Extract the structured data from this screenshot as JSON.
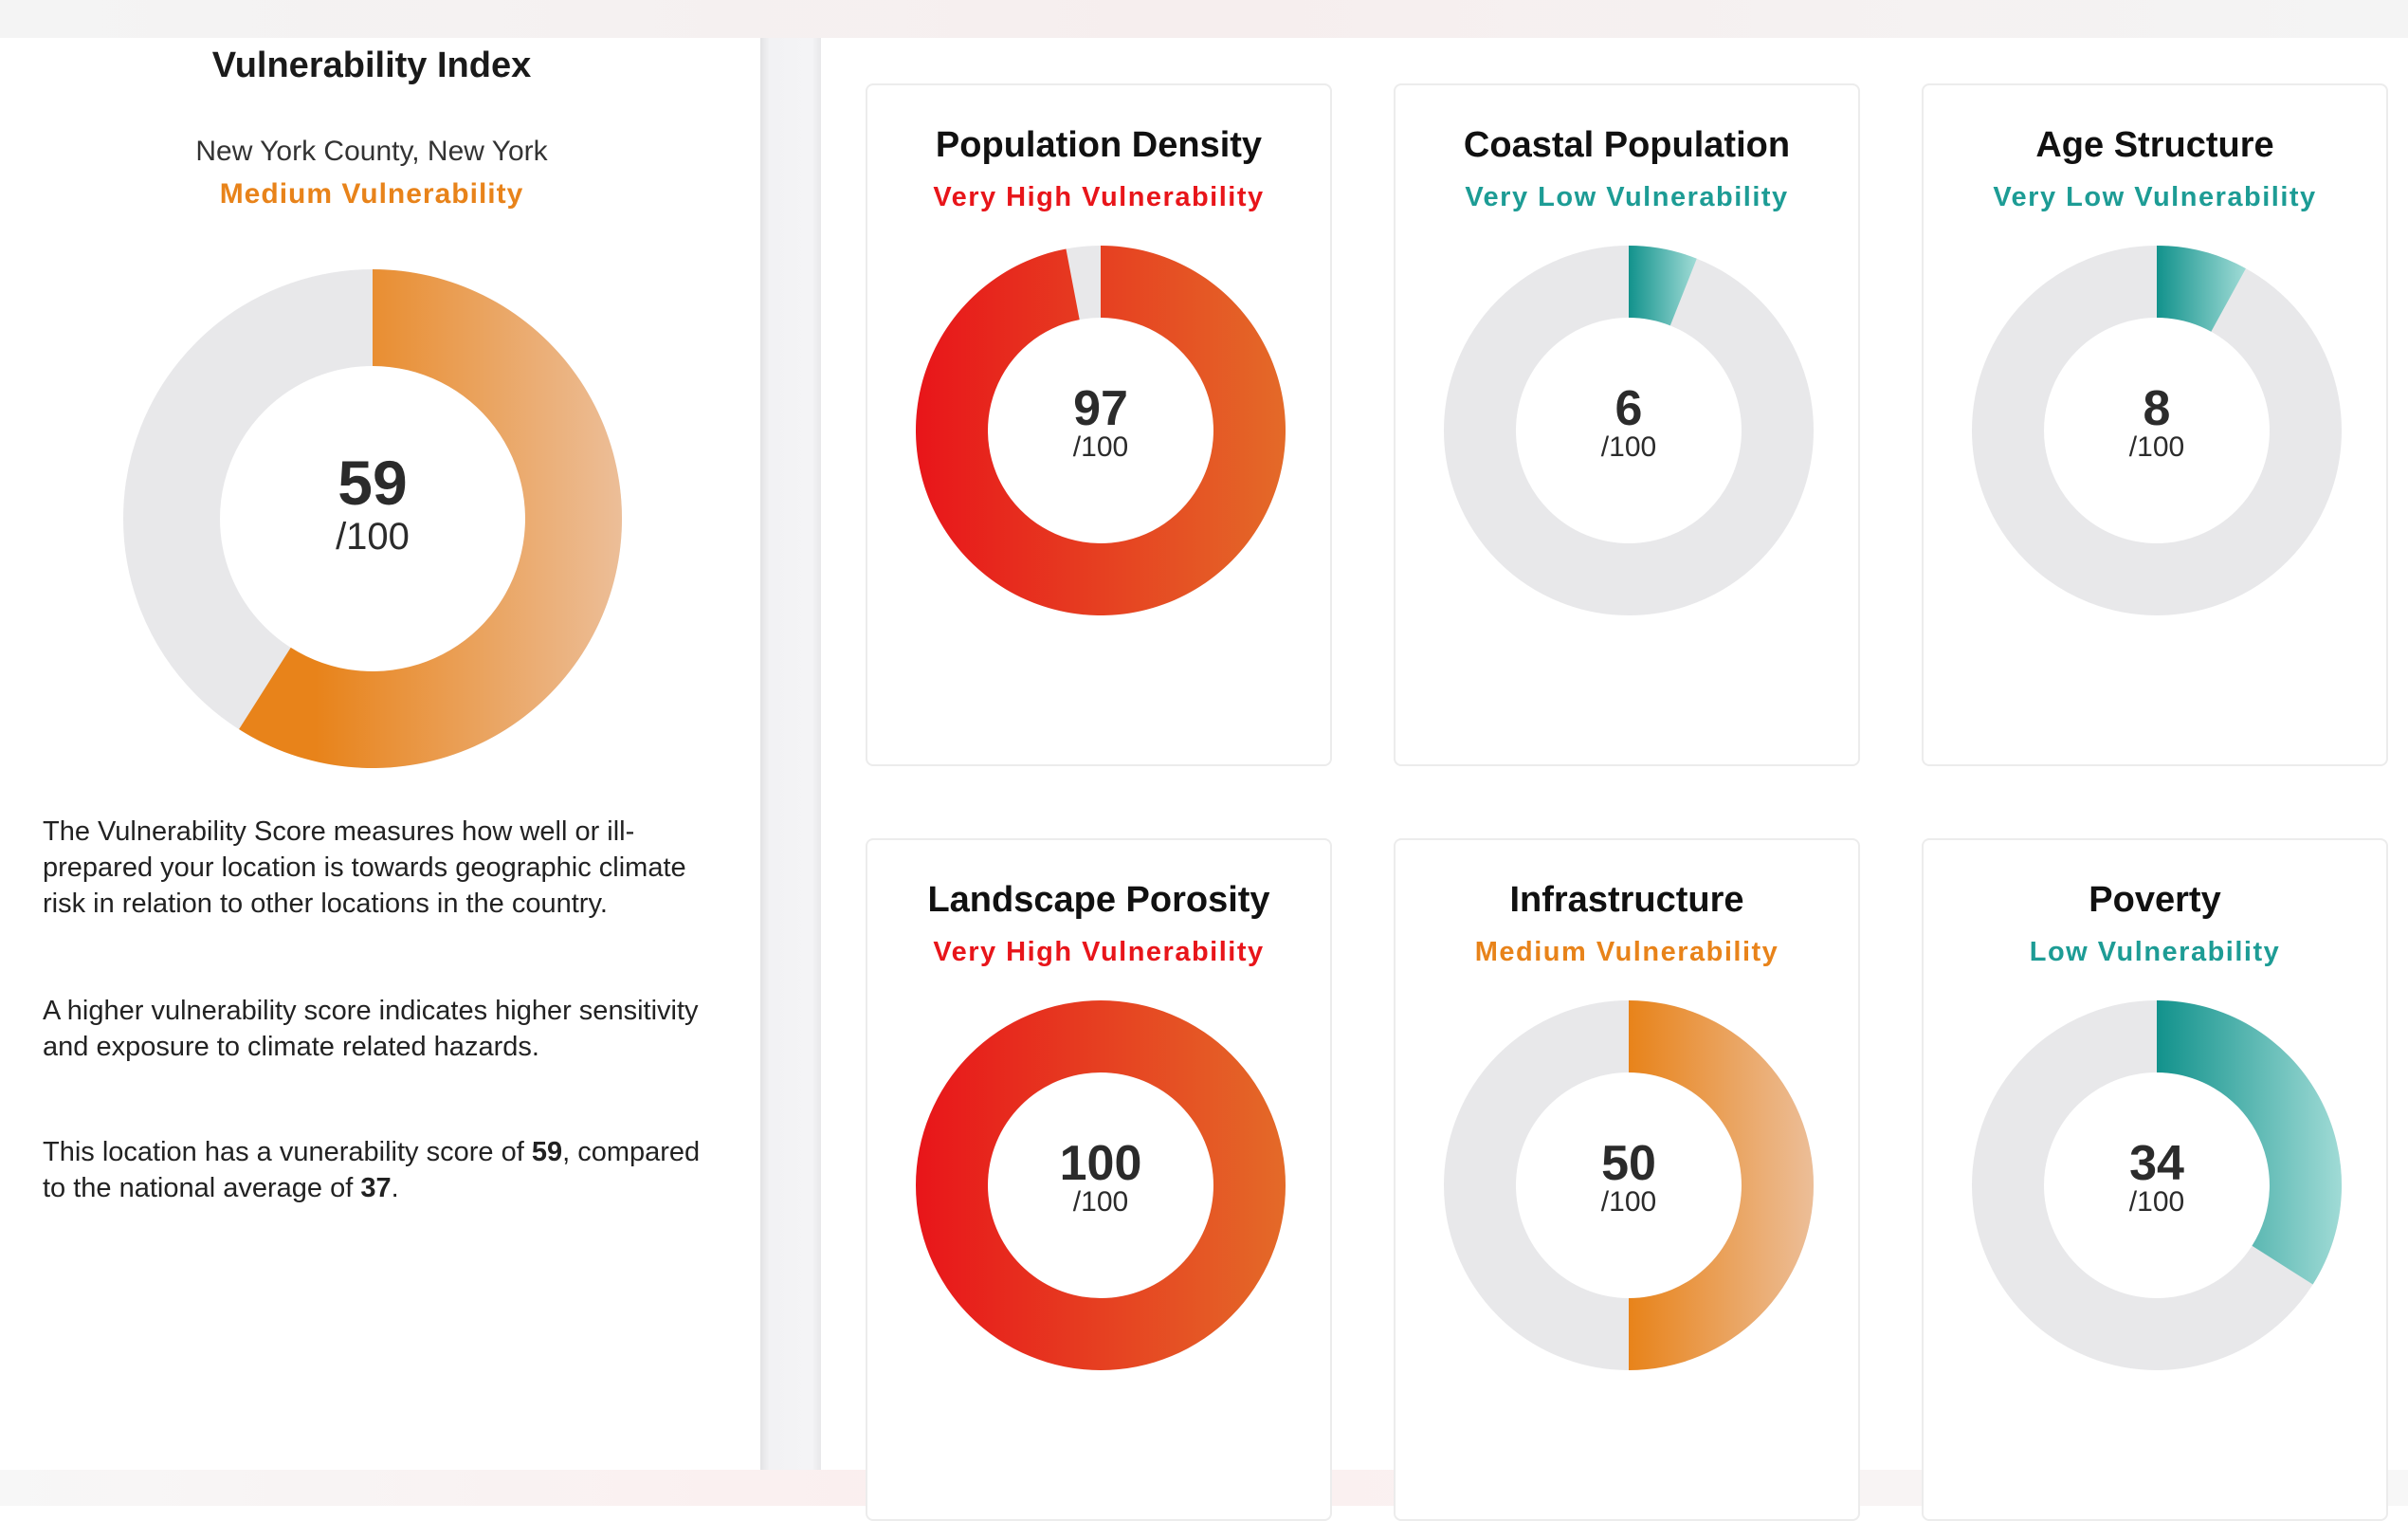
{
  "summary": {
    "title": "Vulnerability Index",
    "location": "New York County, New York",
    "vulnerability_label": "Medium Vulnerability",
    "label_color": "#e8831a",
    "score": 59,
    "score_text": "59",
    "out_of": "/100",
    "arc_gradient": [
      "#e8831a",
      "#ecbe98"
    ],
    "description": [
      "The Vulnerability Score measures how well or ill-prepared your location is towards geographic climate risk in relation to other locations in the country.",
      "A higher vulnerability score indicates higher sensitivity and exposure to climate related hazards."
    ],
    "comparison": {
      "prefix": "This location has a vunerability score of ",
      "score": "59",
      "middle": ", compared to the national average of ",
      "national_average": "37",
      "suffix": "."
    }
  },
  "cards": [
    {
      "title": "Population Density",
      "label": "Very High Vulnerability",
      "label_color": "#e8151a",
      "score": 97,
      "score_text": "97",
      "out_of": "/100",
      "gradient": [
        "#e8151a",
        "#e46a28"
      ]
    },
    {
      "title": "Coastal Population",
      "label": "Very Low Vulnerability",
      "label_color": "#1d9c95",
      "score": 6,
      "score_text": "6",
      "out_of": "/100",
      "gradient": [
        "#12928c",
        "#a0dbd6"
      ]
    },
    {
      "title": "Age Structure",
      "label": "Very Low Vulnerability",
      "label_color": "#1d9c95",
      "score": 8,
      "score_text": "8",
      "out_of": "/100",
      "gradient": [
        "#12928c",
        "#a0dbd6"
      ]
    },
    {
      "title": "Landscape Porosity",
      "label": "Very High Vulnerability",
      "label_color": "#e8151a",
      "score": 100,
      "score_text": "100",
      "out_of": "/100",
      "gradient": [
        "#e8151a",
        "#e46a28"
      ]
    },
    {
      "title": "Infrastructure",
      "label": "Medium Vulnerability",
      "label_color": "#e8831a",
      "score": 50,
      "score_text": "50",
      "out_of": "/100",
      "gradient": [
        "#e8831a",
        "#ecbe98"
      ]
    },
    {
      "title": "Poverty",
      "label": "Low Vulnerability",
      "label_color": "#1d9c95",
      "score": 34,
      "score_text": "34",
      "out_of": "/100",
      "gradient": [
        "#12928c",
        "#a0dbd6"
      ]
    }
  ],
  "track_color": "#e8e8ea"
}
